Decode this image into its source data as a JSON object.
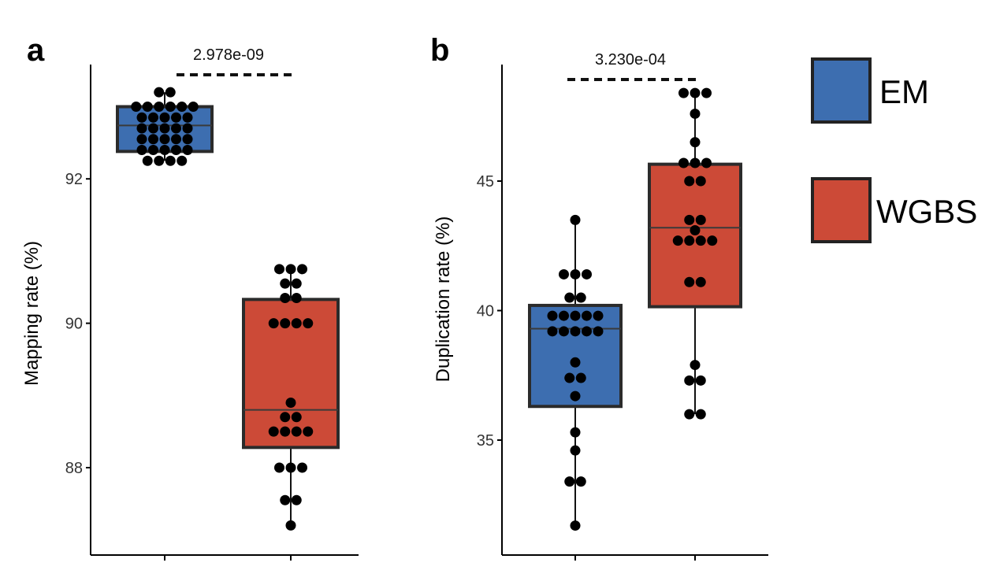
{
  "colors": {
    "EM": "#3d6eb0",
    "WGBS": "#cc4a37",
    "box_edge": "#2b2b2b",
    "dot": "#000000"
  },
  "legend": {
    "items": [
      {
        "label": "EM",
        "color_key": "EM"
      },
      {
        "label": "WGBS",
        "color_key": "WGBS"
      }
    ]
  },
  "chart_data": [
    {
      "type": "box",
      "panel_label": "a",
      "ylabel": "Mapping rate (%)",
      "xlabel": "",
      "ylim": [
        87.0,
        93.6
      ],
      "yticks": [
        88,
        90,
        92
      ],
      "pvalue": "2.978e-09",
      "groups": [
        {
          "name": "EM",
          "stats": {
            "min": 92.25,
            "q1": 92.38,
            "median": 92.74,
            "q3": 93.0,
            "max": 93.2
          },
          "points": [
            93.2,
            93.2,
            93.0,
            93.0,
            93.0,
            93.0,
            93.0,
            93.0,
            92.85,
            92.85,
            92.85,
            92.85,
            92.85,
            92.7,
            92.7,
            92.7,
            92.7,
            92.7,
            92.55,
            92.55,
            92.55,
            92.55,
            92.55,
            92.4,
            92.4,
            92.4,
            92.4,
            92.4,
            92.25,
            92.25,
            92.25,
            92.25
          ]
        },
        {
          "name": "WGBS",
          "stats": {
            "min": 87.2,
            "q1": 88.28,
            "median": 88.8,
            "q3": 90.33,
            "max": 90.75
          },
          "points": [
            90.75,
            90.75,
            90.75,
            90.55,
            90.55,
            90.35,
            90.35,
            90.0,
            90.0,
            90.0,
            90.0,
            88.9,
            88.7,
            88.7,
            88.5,
            88.5,
            88.5,
            88.5,
            88.0,
            88.0,
            88.0,
            87.55,
            87.55,
            87.2
          ]
        }
      ]
    },
    {
      "type": "box",
      "panel_label": "b",
      "ylabel": "Duplication rate (%)",
      "xlabel": "",
      "ylim": [
        31.5,
        49.5
      ],
      "yticks": [
        35,
        40,
        45
      ],
      "pvalue": "3.230e-04",
      "groups": [
        {
          "name": "EM",
          "stats": {
            "min": 31.7,
            "q1": 36.3,
            "median": 39.3,
            "q3": 40.2,
            "max": 43.5
          },
          "points": [
            43.5,
            41.4,
            41.4,
            41.4,
            40.5,
            40.5,
            39.8,
            39.8,
            39.8,
            39.8,
            39.8,
            39.2,
            39.2,
            39.2,
            39.2,
            39.2,
            38.0,
            37.4,
            37.4,
            36.7,
            35.3,
            34.6,
            33.4,
            33.4,
            31.7
          ]
        },
        {
          "name": "WGBS",
          "stats": {
            "min": 36.0,
            "q1": 40.15,
            "median": 43.2,
            "q3": 45.65,
            "max": 48.4
          },
          "points": [
            48.4,
            48.4,
            48.4,
            47.6,
            46.5,
            45.7,
            45.7,
            45.7,
            45.0,
            45.0,
            43.5,
            43.5,
            43.1,
            42.7,
            42.7,
            42.7,
            42.7,
            41.1,
            41.1,
            37.9,
            37.3,
            37.3,
            36.0,
            36.0
          ]
        }
      ]
    }
  ]
}
